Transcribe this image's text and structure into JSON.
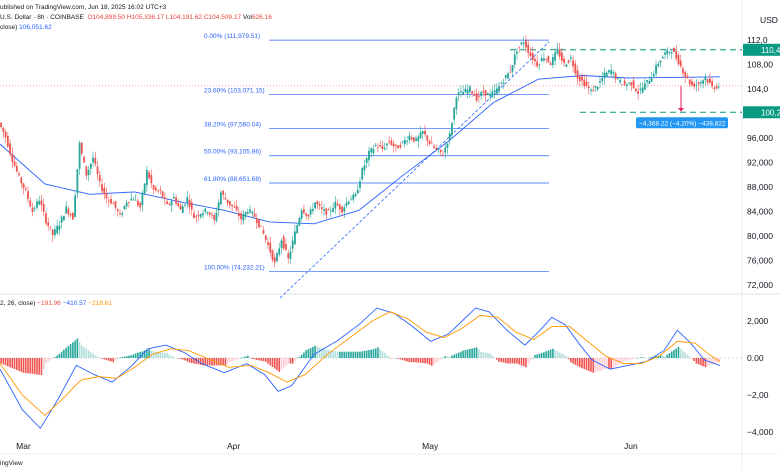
{
  "header": {
    "line1_prefix": "ublished on TradingView.com, Jun 18, 2025 16:02 UTC+3",
    "symbol": "U.S. Dollar · 8h · COINBASE",
    "o": "O104,899.50",
    "h": "H105,336.17",
    "l": "L104,191.62",
    "c": "C104,509.17",
    "vol_label": "Vol",
    "vol": "626.16",
    "ma_label": "close)",
    "ma_value": "106,051.62"
  },
  "macd_header": {
    "params": "2, 26, close)",
    "v1": "−191.96",
    "v2": "−410.57",
    "v3": "−218.61"
  },
  "price_axis": {
    "unit": "USD",
    "ticks": [
      "112,0",
      "108,00",
      "104,0",
      "100,0",
      "96,000",
      "92,000",
      "88,000",
      "84,000",
      "80,000",
      "76,000",
      "72,000"
    ],
    "tick_values": [
      112000,
      108000,
      104000,
      100000,
      96000,
      92000,
      88000,
      84000,
      80000,
      76000,
      72000
    ],
    "upper_tag": "110,4",
    "lower_tag": "100,2"
  },
  "macd_axis": {
    "ticks": [
      "2,000",
      "0.00",
      "−2,00",
      "−4,000"
    ],
    "tick_values": [
      2000,
      0,
      -2000,
      -4000
    ]
  },
  "x_axis": {
    "labels": [
      "Mar",
      "Apr",
      "May",
      "Jun"
    ],
    "footer": "ingView"
  },
  "fib_levels": [
    {
      "label": "0.00% (111,979.51)",
      "value": 111979.51
    },
    {
      "label": "23.60% (103,071.15)",
      "value": 103071.15
    },
    {
      "label": "38.20% (97,560.04)",
      "value": 97560.04
    },
    {
      "label": "50.00% (93,105.86)",
      "value": 93105.86
    },
    {
      "label": "61.80% (88,651.68)",
      "value": 88651.68
    },
    {
      "label": "100.00% (74,232.21)",
      "value": 74232.21
    }
  ],
  "measure_label": "−4,368.22 (−4.20%) −438,822",
  "colors": {
    "up": "#26a69a",
    "down": "#ef5350",
    "ma": "#2962ff",
    "signal": "#ff9800",
    "fib": "#2962ff",
    "tag": "#089981",
    "measure": "#2196f3"
  },
  "chart_data": {
    "type": "candlestick",
    "x_labels": [
      "Mar",
      "Apr",
      "May",
      "Jun"
    ],
    "price_range": [
      72000,
      113500
    ],
    "macd_range": [
      -4000,
      2600
    ],
    "price_path": [
      [
        0,
        98500
      ],
      [
        3,
        96200
      ],
      [
        6,
        92500
      ],
      [
        9,
        89500
      ],
      [
        12,
        87200
      ],
      [
        15,
        84000
      ],
      [
        18,
        86000
      ],
      [
        21,
        82500
      ],
      [
        24,
        80200
      ],
      [
        27,
        82000
      ],
      [
        30,
        84500
      ],
      [
        33,
        83000
      ],
      [
        36,
        95000
      ],
      [
        39,
        90000
      ],
      [
        42,
        92800
      ],
      [
        45,
        88500
      ],
      [
        48,
        86200
      ],
      [
        51,
        85300
      ],
      [
        54,
        83200
      ],
      [
        57,
        85700
      ],
      [
        60,
        86200
      ],
      [
        63,
        84700
      ],
      [
        66,
        90600
      ],
      [
        69,
        87500
      ],
      [
        72,
        87200
      ],
      [
        75,
        84900
      ],
      [
        78,
        86300
      ],
      [
        81,
        84200
      ],
      [
        84,
        86200
      ],
      [
        87,
        83100
      ],
      [
        90,
        83800
      ],
      [
        93,
        84200
      ],
      [
        96,
        82500
      ],
      [
        99,
        87100
      ],
      [
        102,
        85500
      ],
      [
        105,
        84500
      ],
      [
        108,
        82800
      ],
      [
        111,
        84300
      ],
      [
        114,
        83200
      ],
      [
        117,
        81200
      ],
      [
        120,
        78500
      ],
      [
        123,
        75500
      ],
      [
        126,
        79500
      ],
      [
        129,
        76200
      ],
      [
        132,
        80500
      ],
      [
        135,
        84500
      ],
      [
        138,
        83200
      ],
      [
        141,
        85500
      ],
      [
        144,
        84200
      ],
      [
        147,
        83800
      ],
      [
        150,
        85300
      ],
      [
        153,
        84300
      ],
      [
        156,
        86000
      ],
      [
        159,
        86500
      ],
      [
        162,
        90700
      ],
      [
        165,
        93500
      ],
      [
        168,
        94800
      ],
      [
        171,
        94200
      ],
      [
        174,
        95500
      ],
      [
        177,
        94300
      ],
      [
        180,
        95200
      ],
      [
        183,
        96300
      ],
      [
        186,
        95500
      ],
      [
        189,
        97000
      ],
      [
        192,
        95200
      ],
      [
        195,
        94000
      ],
      [
        198,
        93400
      ],
      [
        201,
        96500
      ],
      [
        204,
        103000
      ],
      [
        207,
        103500
      ],
      [
        210,
        104000
      ],
      [
        213,
        102500
      ],
      [
        216,
        103500
      ],
      [
        219,
        102900
      ],
      [
        222,
        103900
      ],
      [
        225,
        105500
      ],
      [
        228,
        107000
      ],
      [
        231,
        110500
      ],
      [
        234,
        111800
      ],
      [
        237,
        109500
      ],
      [
        240,
        108000
      ],
      [
        243,
        109300
      ],
      [
        246,
        108200
      ],
      [
        249,
        110300
      ],
      [
        252,
        108000
      ],
      [
        255,
        109000
      ],
      [
        258,
        106000
      ],
      [
        261,
        104900
      ],
      [
        264,
        103600
      ],
      [
        267,
        104600
      ],
      [
        270,
        106300
      ],
      [
        273,
        107000
      ],
      [
        276,
        105400
      ],
      [
        279,
        104700
      ],
      [
        282,
        105000
      ],
      [
        285,
        103400
      ],
      [
        288,
        104700
      ],
      [
        291,
        106000
      ],
      [
        294,
        108300
      ],
      [
        297,
        109800
      ],
      [
        300,
        110400
      ],
      [
        303,
        108500
      ],
      [
        306,
        106200
      ],
      [
        309,
        104600
      ],
      [
        312,
        104900
      ],
      [
        315,
        105900
      ],
      [
        318,
        104300
      ],
      [
        321,
        104500
      ]
    ],
    "ma_path": [
      [
        0,
        95000
      ],
      [
        20,
        88500
      ],
      [
        40,
        86800
      ],
      [
        60,
        87200
      ],
      [
        80,
        85600
      ],
      [
        100,
        84200
      ],
      [
        120,
        82300
      ],
      [
        140,
        82000
      ],
      [
        160,
        84200
      ],
      [
        180,
        90000
      ],
      [
        200,
        95500
      ],
      [
        220,
        101800
      ],
      [
        240,
        105600
      ],
      [
        260,
        106200
      ],
      [
        280,
        105800
      ],
      [
        300,
        105900
      ],
      [
        321,
        106000
      ]
    ],
    "macd_line": [
      [
        0,
        -600
      ],
      [
        10,
        -2800
      ],
      [
        18,
        -3800
      ],
      [
        26,
        -2200
      ],
      [
        34,
        -400
      ],
      [
        42,
        -900
      ],
      [
        50,
        -1300
      ],
      [
        58,
        -500
      ],
      [
        66,
        500
      ],
      [
        74,
        700
      ],
      [
        82,
        300
      ],
      [
        90,
        -300
      ],
      [
        100,
        -800
      ],
      [
        110,
        -300
      ],
      [
        118,
        -900
      ],
      [
        124,
        -1800
      ],
      [
        130,
        -1500
      ],
      [
        140,
        200
      ],
      [
        150,
        900
      ],
      [
        160,
        1800
      ],
      [
        168,
        2700
      ],
      [
        176,
        2400
      ],
      [
        184,
        1700
      ],
      [
        192,
        900
      ],
      [
        200,
        1300
      ],
      [
        206,
        2000
      ],
      [
        212,
        2700
      ],
      [
        218,
        2500
      ],
      [
        226,
        1500
      ],
      [
        234,
        700
      ],
      [
        240,
        1400
      ],
      [
        246,
        2200
      ],
      [
        252,
        1800
      ],
      [
        258,
        800
      ],
      [
        264,
        -100
      ],
      [
        272,
        -600
      ],
      [
        280,
        -400
      ],
      [
        288,
        -200
      ],
      [
        296,
        400
      ],
      [
        302,
        1500
      ],
      [
        308,
        800
      ],
      [
        314,
        -100
      ],
      [
        321,
        -410
      ]
    ],
    "signal_line": [
      [
        0,
        -300
      ],
      [
        10,
        -2000
      ],
      [
        20,
        -3100
      ],
      [
        28,
        -2200
      ],
      [
        36,
        -1200
      ],
      [
        44,
        -1000
      ],
      [
        52,
        -1100
      ],
      [
        60,
        -500
      ],
      [
        68,
        200
      ],
      [
        76,
        500
      ],
      [
        84,
        400
      ],
      [
        92,
        0
      ],
      [
        102,
        -500
      ],
      [
        112,
        -400
      ],
      [
        120,
        -800
      ],
      [
        128,
        -1300
      ],
      [
        136,
        -900
      ],
      [
        146,
        200
      ],
      [
        156,
        1100
      ],
      [
        166,
        2000
      ],
      [
        174,
        2500
      ],
      [
        182,
        2100
      ],
      [
        190,
        1400
      ],
      [
        198,
        1100
      ],
      [
        206,
        1600
      ],
      [
        214,
        2300
      ],
      [
        222,
        2200
      ],
      [
        230,
        1400
      ],
      [
        238,
        1000
      ],
      [
        246,
        1700
      ],
      [
        254,
        1700
      ],
      [
        262,
        900
      ],
      [
        270,
        100
      ],
      [
        278,
        -300
      ],
      [
        286,
        -300
      ],
      [
        294,
        100
      ],
      [
        302,
        900
      ],
      [
        310,
        800
      ],
      [
        316,
        200
      ],
      [
        321,
        -191
      ]
    ]
  }
}
